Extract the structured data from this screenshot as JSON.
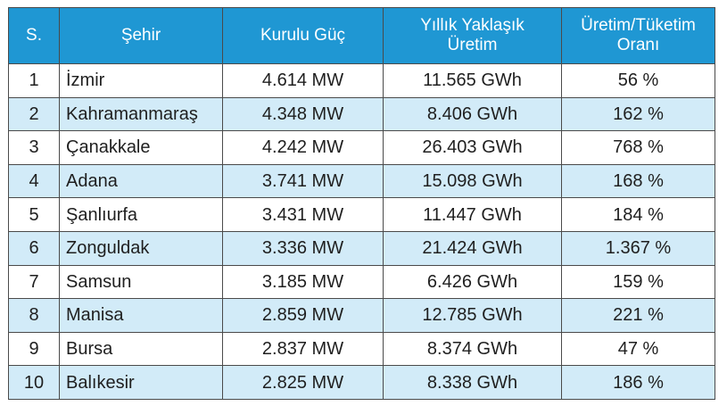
{
  "table": {
    "headers": {
      "no": "S.",
      "city": "Şehir",
      "capacity": "Kurulu Güç",
      "production_line1": "Yıllık Yaklaşık",
      "production_line2": "Üretim",
      "ratio_line1": "Üretim/Tüketim",
      "ratio_line2": "Oranı"
    },
    "rows": [
      {
        "no": "1",
        "city": "İzmir",
        "capacity": "4.614 MW",
        "production": "11.565 GWh",
        "ratio": "56 %"
      },
      {
        "no": "2",
        "city": "Kahramanmaraş",
        "capacity": "4.348 MW",
        "production": "8.406 GWh",
        "ratio": "162 %"
      },
      {
        "no": "3",
        "city": "Çanakkale",
        "capacity": "4.242 MW",
        "production": "26.403 GWh",
        "ratio": "768 %"
      },
      {
        "no": "4",
        "city": "Adana",
        "capacity": "3.741 MW",
        "production": "15.098 GWh",
        "ratio": "168 %"
      },
      {
        "no": "5",
        "city": "Şanlıurfa",
        "capacity": "3.431 MW",
        "production": "11.447 GWh",
        "ratio": "184 %"
      },
      {
        "no": "6",
        "city": "Zonguldak",
        "capacity": "3.336 MW",
        "production": "21.424 GWh",
        "ratio": "1.367 %"
      },
      {
        "no": "7",
        "city": "Samsun",
        "capacity": "3.185 MW",
        "production": "6.426 GWh",
        "ratio": "159 %"
      },
      {
        "no": "8",
        "city": "Manisa",
        "capacity": "2.859 MW",
        "production": "12.785 GWh",
        "ratio": "221 %"
      },
      {
        "no": "9",
        "city": "Bursa",
        "capacity": "2.837 MW",
        "production": "8.374 GWh",
        "ratio": "47 %"
      },
      {
        "no": "10",
        "city": "Balıkesir",
        "capacity": "2.825 MW",
        "production": "8.338 GWh",
        "ratio": "186 %"
      }
    ]
  },
  "colors": {
    "header_bg": "#1f97d3",
    "stripe_bg": "#d2ebf8",
    "border": "#4a4a4a"
  }
}
